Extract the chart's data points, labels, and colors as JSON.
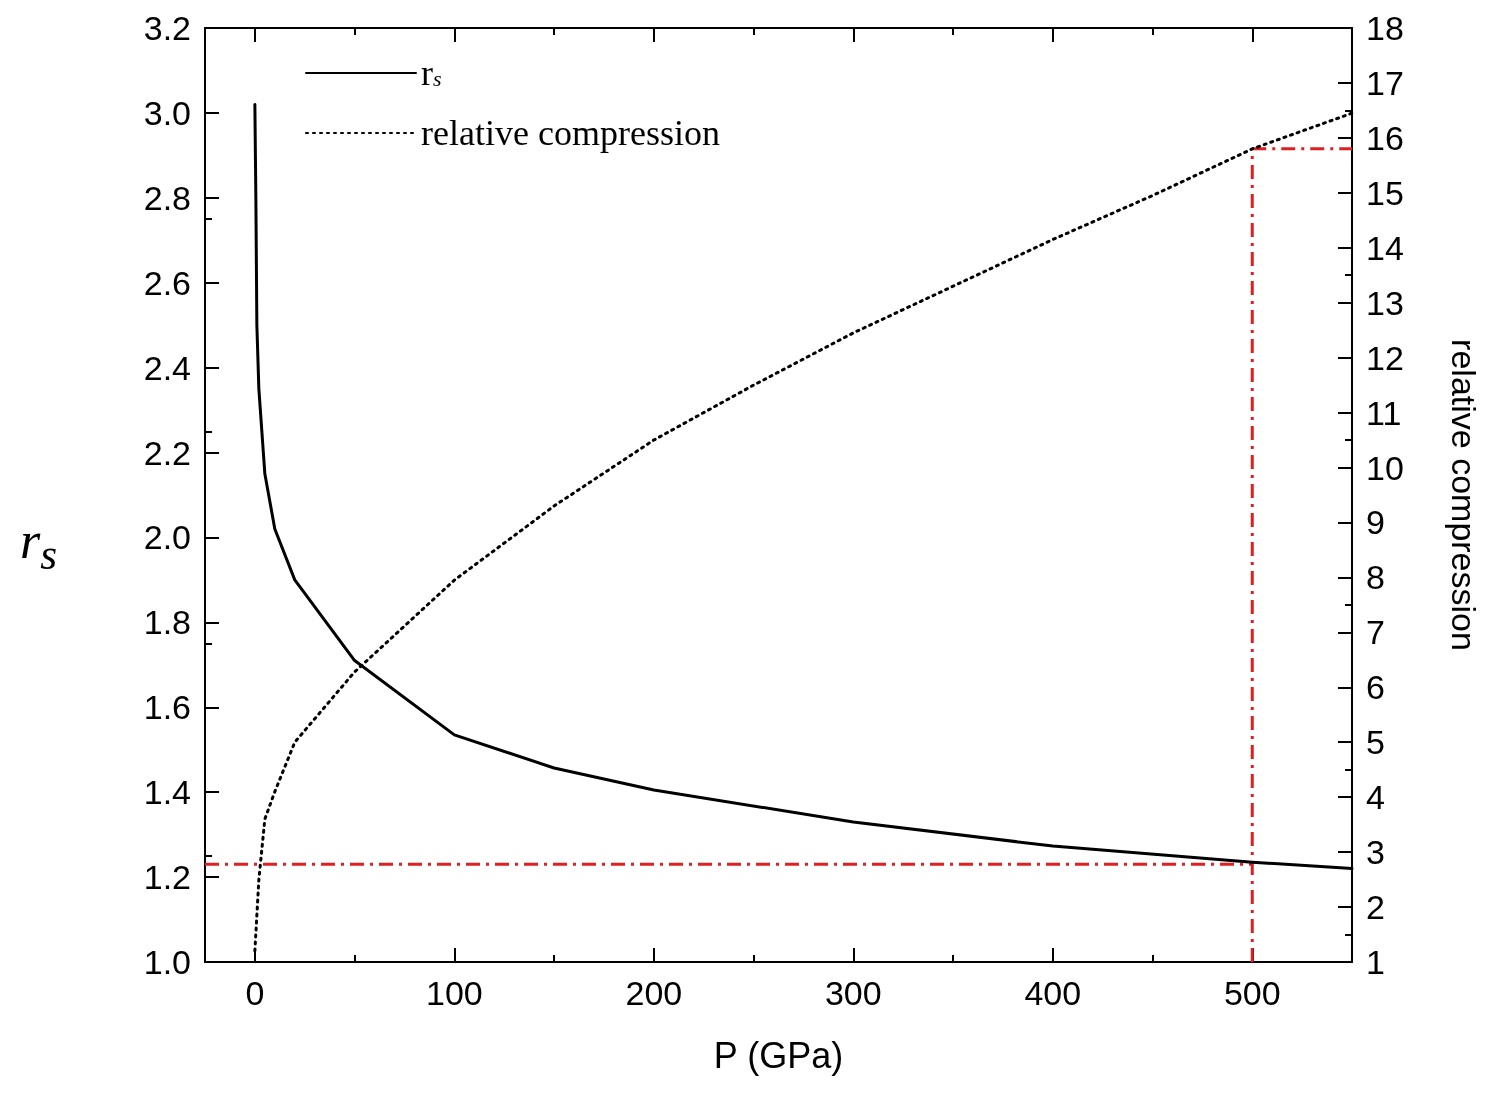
{
  "chart_data": {
    "type": "line",
    "xlabel": "P (GPa)",
    "ylabel": "r$_{s}$",
    "y2label": "relative compression",
    "xlim": [
      -25,
      550
    ],
    "xticks": [
      0,
      100,
      200,
      300,
      400,
      500
    ],
    "ylim": [
      1.0,
      3.2
    ],
    "yticks": [
      {
        "value": 1.0,
        "label": "1.0"
      },
      {
        "value": 1.2,
        "label": "1.2"
      },
      {
        "value": 1.4,
        "label": "1.4"
      },
      {
        "value": 1.6,
        "label": "1.6"
      },
      {
        "value": 1.8,
        "label": "1.8"
      },
      {
        "value": 2.0,
        "label": "2.0"
      },
      {
        "value": 2.2,
        "label": "2.2"
      },
      {
        "value": 2.4,
        "label": "2.4"
      },
      {
        "value": 2.6,
        "label": "2.6"
      },
      {
        "value": 2.8,
        "label": "2.8"
      },
      {
        "value": 3.0,
        "label": "3.0"
      },
      {
        "value": 3.2,
        "label": "3.2"
      }
    ],
    "y2lim": [
      1,
      18
    ],
    "y2ticks": [
      1,
      2,
      3,
      4,
      5,
      6,
      7,
      8,
      9,
      10,
      11,
      12,
      13,
      14,
      15,
      16,
      17,
      18
    ],
    "grid": false,
    "legend": "top left",
    "marker": "none",
    "series": [
      {
        "name": "r$_{s}$",
        "color": "#000000",
        "line_style": "solid",
        "x": [
          0,
          0.5,
          1,
          2,
          5,
          10,
          20,
          50,
          100,
          150,
          200,
          300,
          400,
          500,
          550
        ],
        "values": [
          3.02,
          2.8,
          2.5,
          2.35,
          2.15,
          2.02,
          1.9,
          1.71,
          1.535,
          1.457,
          1.405,
          1.33,
          1.273,
          1.235,
          1.22
        ]
      },
      {
        "name": "relative compression",
        "color": "#000000",
        "line_style": "dotted",
        "axis": "y2",
        "x": [
          0,
          2,
          5,
          10,
          20,
          50,
          100,
          150,
          200,
          250,
          300,
          350,
          400,
          450,
          500,
          550
        ],
        "values": [
          1.2,
          2.5,
          3.6,
          4.1,
          5.0,
          6.28,
          7.95,
          9.3,
          10.5,
          11.5,
          12.45,
          13.3,
          14.15,
          14.95,
          15.8,
          16.45
        ]
      }
    ],
    "ref_lines": [
      {
        "axis": "y",
        "value": 1.23,
        "color": "#e02020",
        "line_style": "dashed"
      },
      {
        "axis": "x",
        "value": 500,
        "color": "#e02020",
        "line_style": "dashed"
      },
      {
        "axis": "y2",
        "value": 15.8,
        "color": "#e02020",
        "line_style": "dashed"
      }
    ]
  }
}
